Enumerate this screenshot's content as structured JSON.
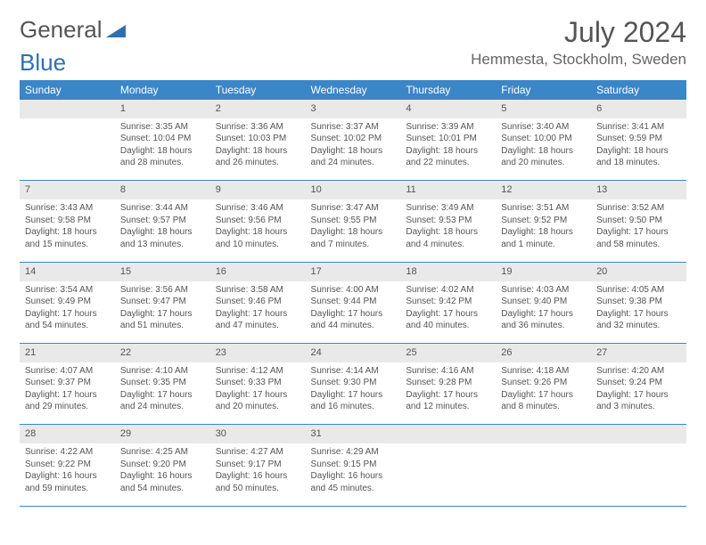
{
  "logo": {
    "text1": "General",
    "text2": "Blue",
    "color1": "#666666",
    "color2": "#2f6fb0",
    "icon_color": "#2f6fb0"
  },
  "title": "July 2024",
  "location": "Hemmesta, Stockholm, Sweden",
  "header_bg": "#3b86c7",
  "daynum_bg": "#e9e9e9",
  "border_color": "#3b86c7",
  "days": [
    "Sunday",
    "Monday",
    "Tuesday",
    "Wednesday",
    "Thursday",
    "Friday",
    "Saturday"
  ],
  "weeks": [
    {
      "nums": [
        "",
        "1",
        "2",
        "3",
        "4",
        "5",
        "6"
      ],
      "cells": [
        null,
        {
          "sunrise": "Sunrise: 3:35 AM",
          "sunset": "Sunset: 10:04 PM",
          "day1": "Daylight: 18 hours",
          "day2": "and 28 minutes."
        },
        {
          "sunrise": "Sunrise: 3:36 AM",
          "sunset": "Sunset: 10:03 PM",
          "day1": "Daylight: 18 hours",
          "day2": "and 26 minutes."
        },
        {
          "sunrise": "Sunrise: 3:37 AM",
          "sunset": "Sunset: 10:02 PM",
          "day1": "Daylight: 18 hours",
          "day2": "and 24 minutes."
        },
        {
          "sunrise": "Sunrise: 3:39 AM",
          "sunset": "Sunset: 10:01 PM",
          "day1": "Daylight: 18 hours",
          "day2": "and 22 minutes."
        },
        {
          "sunrise": "Sunrise: 3:40 AM",
          "sunset": "Sunset: 10:00 PM",
          "day1": "Daylight: 18 hours",
          "day2": "and 20 minutes."
        },
        {
          "sunrise": "Sunrise: 3:41 AM",
          "sunset": "Sunset: 9:59 PM",
          "day1": "Daylight: 18 hours",
          "day2": "and 18 minutes."
        }
      ]
    },
    {
      "nums": [
        "7",
        "8",
        "9",
        "10",
        "11",
        "12",
        "13"
      ],
      "cells": [
        {
          "sunrise": "Sunrise: 3:43 AM",
          "sunset": "Sunset: 9:58 PM",
          "day1": "Daylight: 18 hours",
          "day2": "and 15 minutes."
        },
        {
          "sunrise": "Sunrise: 3:44 AM",
          "sunset": "Sunset: 9:57 PM",
          "day1": "Daylight: 18 hours",
          "day2": "and 13 minutes."
        },
        {
          "sunrise": "Sunrise: 3:46 AM",
          "sunset": "Sunset: 9:56 PM",
          "day1": "Daylight: 18 hours",
          "day2": "and 10 minutes."
        },
        {
          "sunrise": "Sunrise: 3:47 AM",
          "sunset": "Sunset: 9:55 PM",
          "day1": "Daylight: 18 hours",
          "day2": "and 7 minutes."
        },
        {
          "sunrise": "Sunrise: 3:49 AM",
          "sunset": "Sunset: 9:53 PM",
          "day1": "Daylight: 18 hours",
          "day2": "and 4 minutes."
        },
        {
          "sunrise": "Sunrise: 3:51 AM",
          "sunset": "Sunset: 9:52 PM",
          "day1": "Daylight: 18 hours",
          "day2": "and 1 minute."
        },
        {
          "sunrise": "Sunrise: 3:52 AM",
          "sunset": "Sunset: 9:50 PM",
          "day1": "Daylight: 17 hours",
          "day2": "and 58 minutes."
        }
      ]
    },
    {
      "nums": [
        "14",
        "15",
        "16",
        "17",
        "18",
        "19",
        "20"
      ],
      "cells": [
        {
          "sunrise": "Sunrise: 3:54 AM",
          "sunset": "Sunset: 9:49 PM",
          "day1": "Daylight: 17 hours",
          "day2": "and 54 minutes."
        },
        {
          "sunrise": "Sunrise: 3:56 AM",
          "sunset": "Sunset: 9:47 PM",
          "day1": "Daylight: 17 hours",
          "day2": "and 51 minutes."
        },
        {
          "sunrise": "Sunrise: 3:58 AM",
          "sunset": "Sunset: 9:46 PM",
          "day1": "Daylight: 17 hours",
          "day2": "and 47 minutes."
        },
        {
          "sunrise": "Sunrise: 4:00 AM",
          "sunset": "Sunset: 9:44 PM",
          "day1": "Daylight: 17 hours",
          "day2": "and 44 minutes."
        },
        {
          "sunrise": "Sunrise: 4:02 AM",
          "sunset": "Sunset: 9:42 PM",
          "day1": "Daylight: 17 hours",
          "day2": "and 40 minutes."
        },
        {
          "sunrise": "Sunrise: 4:03 AM",
          "sunset": "Sunset: 9:40 PM",
          "day1": "Daylight: 17 hours",
          "day2": "and 36 minutes."
        },
        {
          "sunrise": "Sunrise: 4:05 AM",
          "sunset": "Sunset: 9:38 PM",
          "day1": "Daylight: 17 hours",
          "day2": "and 32 minutes."
        }
      ]
    },
    {
      "nums": [
        "21",
        "22",
        "23",
        "24",
        "25",
        "26",
        "27"
      ],
      "cells": [
        {
          "sunrise": "Sunrise: 4:07 AM",
          "sunset": "Sunset: 9:37 PM",
          "day1": "Daylight: 17 hours",
          "day2": "and 29 minutes."
        },
        {
          "sunrise": "Sunrise: 4:10 AM",
          "sunset": "Sunset: 9:35 PM",
          "day1": "Daylight: 17 hours",
          "day2": "and 24 minutes."
        },
        {
          "sunrise": "Sunrise: 4:12 AM",
          "sunset": "Sunset: 9:33 PM",
          "day1": "Daylight: 17 hours",
          "day2": "and 20 minutes."
        },
        {
          "sunrise": "Sunrise: 4:14 AM",
          "sunset": "Sunset: 9:30 PM",
          "day1": "Daylight: 17 hours",
          "day2": "and 16 minutes."
        },
        {
          "sunrise": "Sunrise: 4:16 AM",
          "sunset": "Sunset: 9:28 PM",
          "day1": "Daylight: 17 hours",
          "day2": "and 12 minutes."
        },
        {
          "sunrise": "Sunrise: 4:18 AM",
          "sunset": "Sunset: 9:26 PM",
          "day1": "Daylight: 17 hours",
          "day2": "and 8 minutes."
        },
        {
          "sunrise": "Sunrise: 4:20 AM",
          "sunset": "Sunset: 9:24 PM",
          "day1": "Daylight: 17 hours",
          "day2": "and 3 minutes."
        }
      ]
    },
    {
      "nums": [
        "28",
        "29",
        "30",
        "31",
        "",
        "",
        ""
      ],
      "cells": [
        {
          "sunrise": "Sunrise: 4:22 AM",
          "sunset": "Sunset: 9:22 PM",
          "day1": "Daylight: 16 hours",
          "day2": "and 59 minutes."
        },
        {
          "sunrise": "Sunrise: 4:25 AM",
          "sunset": "Sunset: 9:20 PM",
          "day1": "Daylight: 16 hours",
          "day2": "and 54 minutes."
        },
        {
          "sunrise": "Sunrise: 4:27 AM",
          "sunset": "Sunset: 9:17 PM",
          "day1": "Daylight: 16 hours",
          "day2": "and 50 minutes."
        },
        {
          "sunrise": "Sunrise: 4:29 AM",
          "sunset": "Sunset: 9:15 PM",
          "day1": "Daylight: 16 hours",
          "day2": "and 45 minutes."
        },
        null,
        null,
        null
      ]
    }
  ]
}
